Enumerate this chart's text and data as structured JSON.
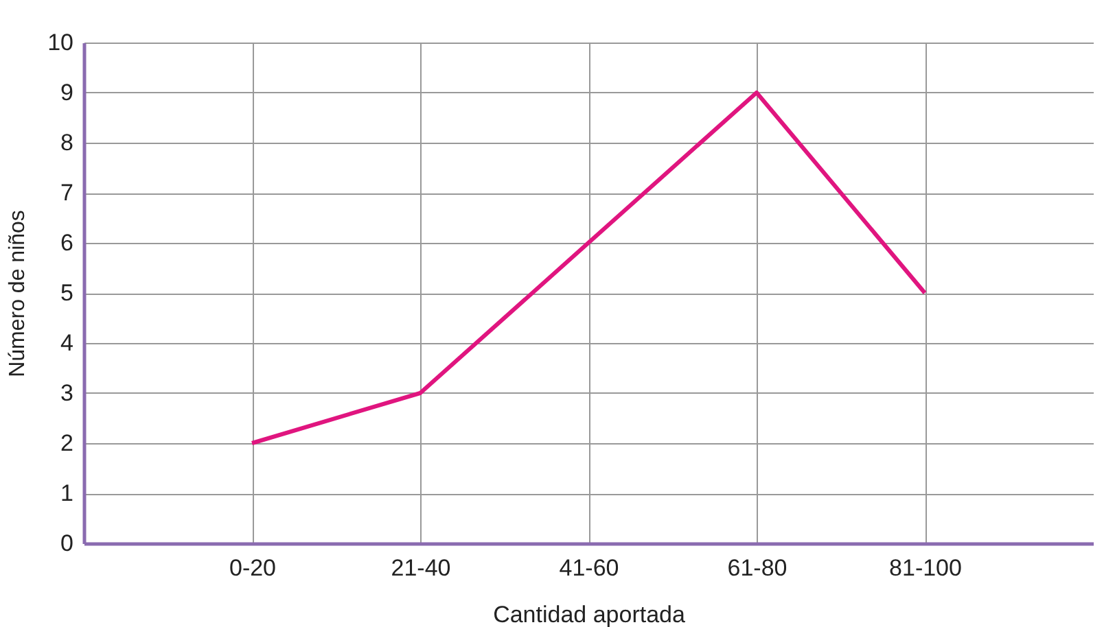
{
  "chart_data": {
    "type": "line",
    "xlabel": "Cantidad aportada",
    "ylabel": "Número de niños",
    "categories": [
      "0-20",
      "21-40",
      "41-60",
      "61-80",
      "81-100"
    ],
    "series": [
      {
        "color": "#e0157f",
        "values": [
          2,
          3,
          6,
          9,
          5
        ]
      }
    ],
    "ylim": [
      0,
      10
    ],
    "yticks": [
      0,
      1,
      2,
      3,
      4,
      5,
      6,
      7,
      8,
      9,
      10
    ],
    "grid": true,
    "marker": "none",
    "line_style": "solid"
  }
}
